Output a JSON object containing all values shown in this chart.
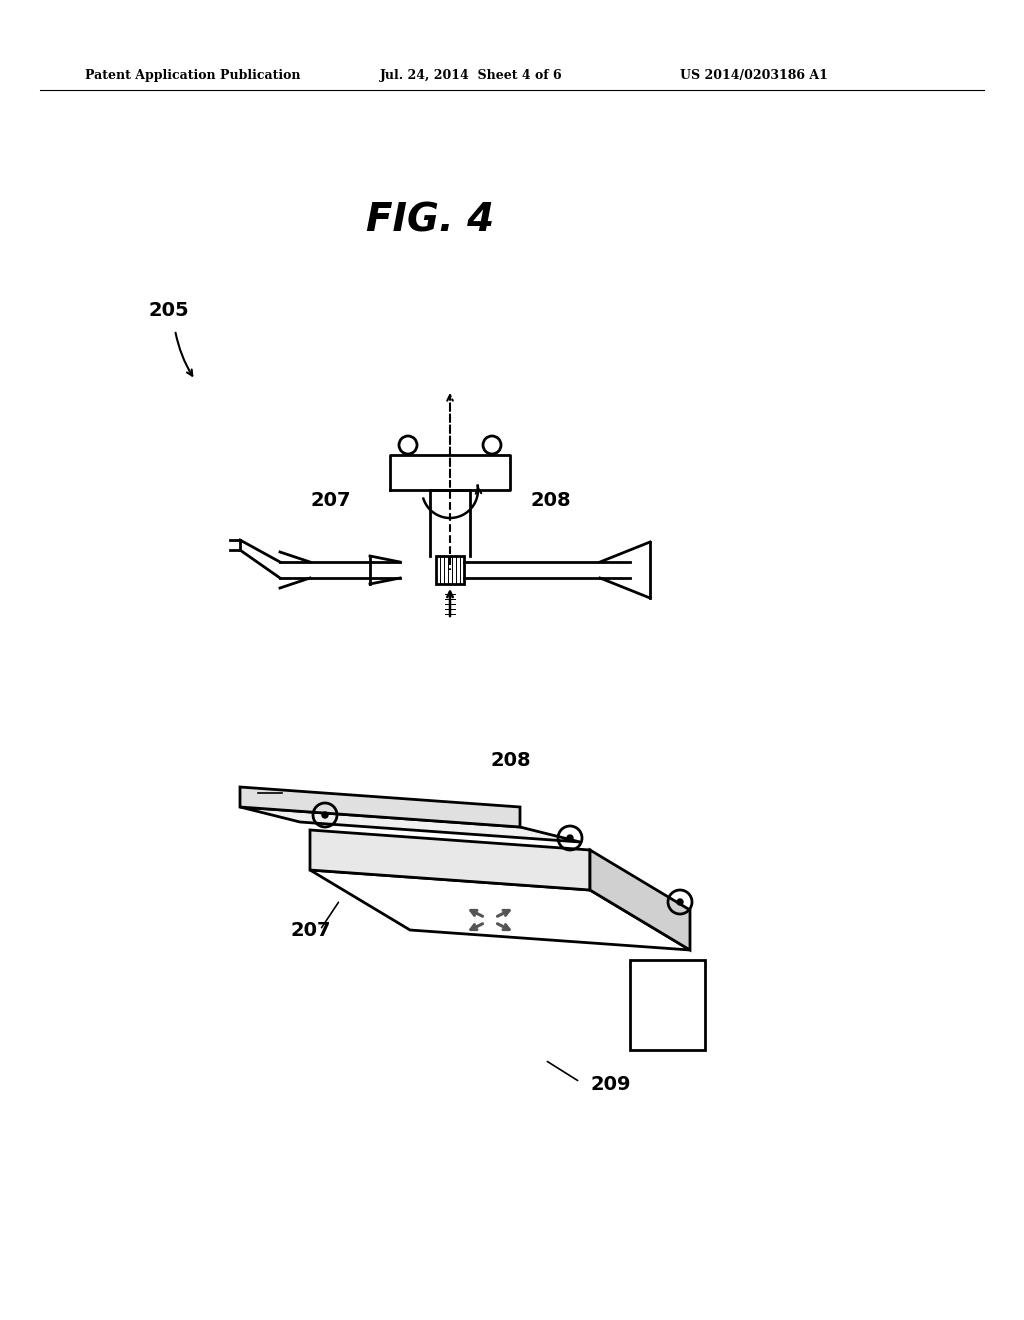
{
  "bg_color": "#ffffff",
  "header_left": "Patent Application Publication",
  "header_mid": "Jul. 24, 2014  Sheet 4 of 6",
  "header_right": "US 2014/0203186 A1",
  "fig_label": "FIG. 4",
  "label_205": "205",
  "label_207_top": "207",
  "label_208_top": "208",
  "label_207_bot": "207",
  "label_208_bot": "208",
  "label_209": "209"
}
